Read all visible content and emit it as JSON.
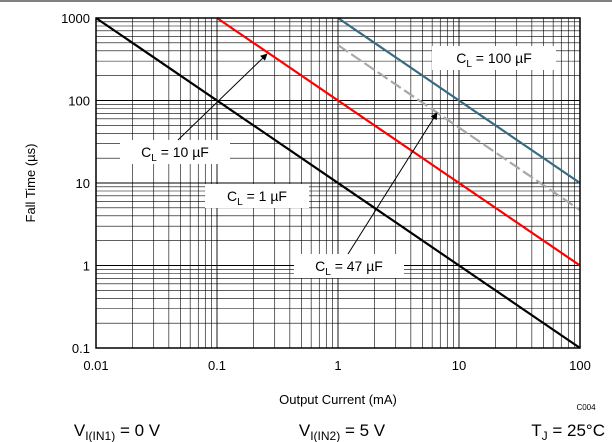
{
  "chart_data": {
    "type": "line",
    "title": "",
    "xlabel": "Output Current (mA)",
    "ylabel": "Fall Time (µs)",
    "xscale": "log",
    "yscale": "log",
    "xlim": [
      0.01,
      100
    ],
    "ylim": [
      0.1,
      1000
    ],
    "grid": true,
    "x_ticks": [
      "0.01",
      "0.1",
      "1",
      "10",
      "100"
    ],
    "y_ticks": [
      "0.1",
      "1",
      "10",
      "100",
      "1000"
    ],
    "series": [
      {
        "name": "CL = 1 µF",
        "color": "#000000",
        "dash": false,
        "x": [
          0.01,
          100
        ],
        "y": [
          1000,
          0.1
        ]
      },
      {
        "name": "CL = 10 µF",
        "color": "#ff0000",
        "dash": false,
        "x": [
          0.1,
          100
        ],
        "y": [
          1000,
          1
        ]
      },
      {
        "name": "CL = 47 µF",
        "color": "#a8a8a8",
        "dash": true,
        "x": [
          1,
          100
        ],
        "y": [
          470,
          4.7
        ]
      },
      {
        "name": "CL = 100 µF",
        "color": "#386a82",
        "dash": false,
        "x": [
          1,
          100
        ],
        "y": [
          1000,
          10
        ]
      }
    ],
    "annotations": [
      {
        "id": "cl1",
        "base": "C",
        "sub": "L",
        "rest": " = 1 µF"
      },
      {
        "id": "cl10",
        "base": "C",
        "sub": "L",
        "rest": " = 10 µF"
      },
      {
        "id": "cl47",
        "base": "C",
        "sub": "L",
        "rest": " = 47 µF"
      },
      {
        "id": "cl100",
        "base": "C",
        "sub": "L",
        "rest": " = 100 µF"
      }
    ],
    "code": "C004",
    "conditions": [
      {
        "base": "V",
        "sub": "I(IN1)",
        "rest": " = 0 V"
      },
      {
        "base": "V",
        "sub": "I(IN2)",
        "rest": " = 5 V"
      },
      {
        "base": "T",
        "sub": "J",
        "rest": " = 25°C"
      }
    ]
  }
}
